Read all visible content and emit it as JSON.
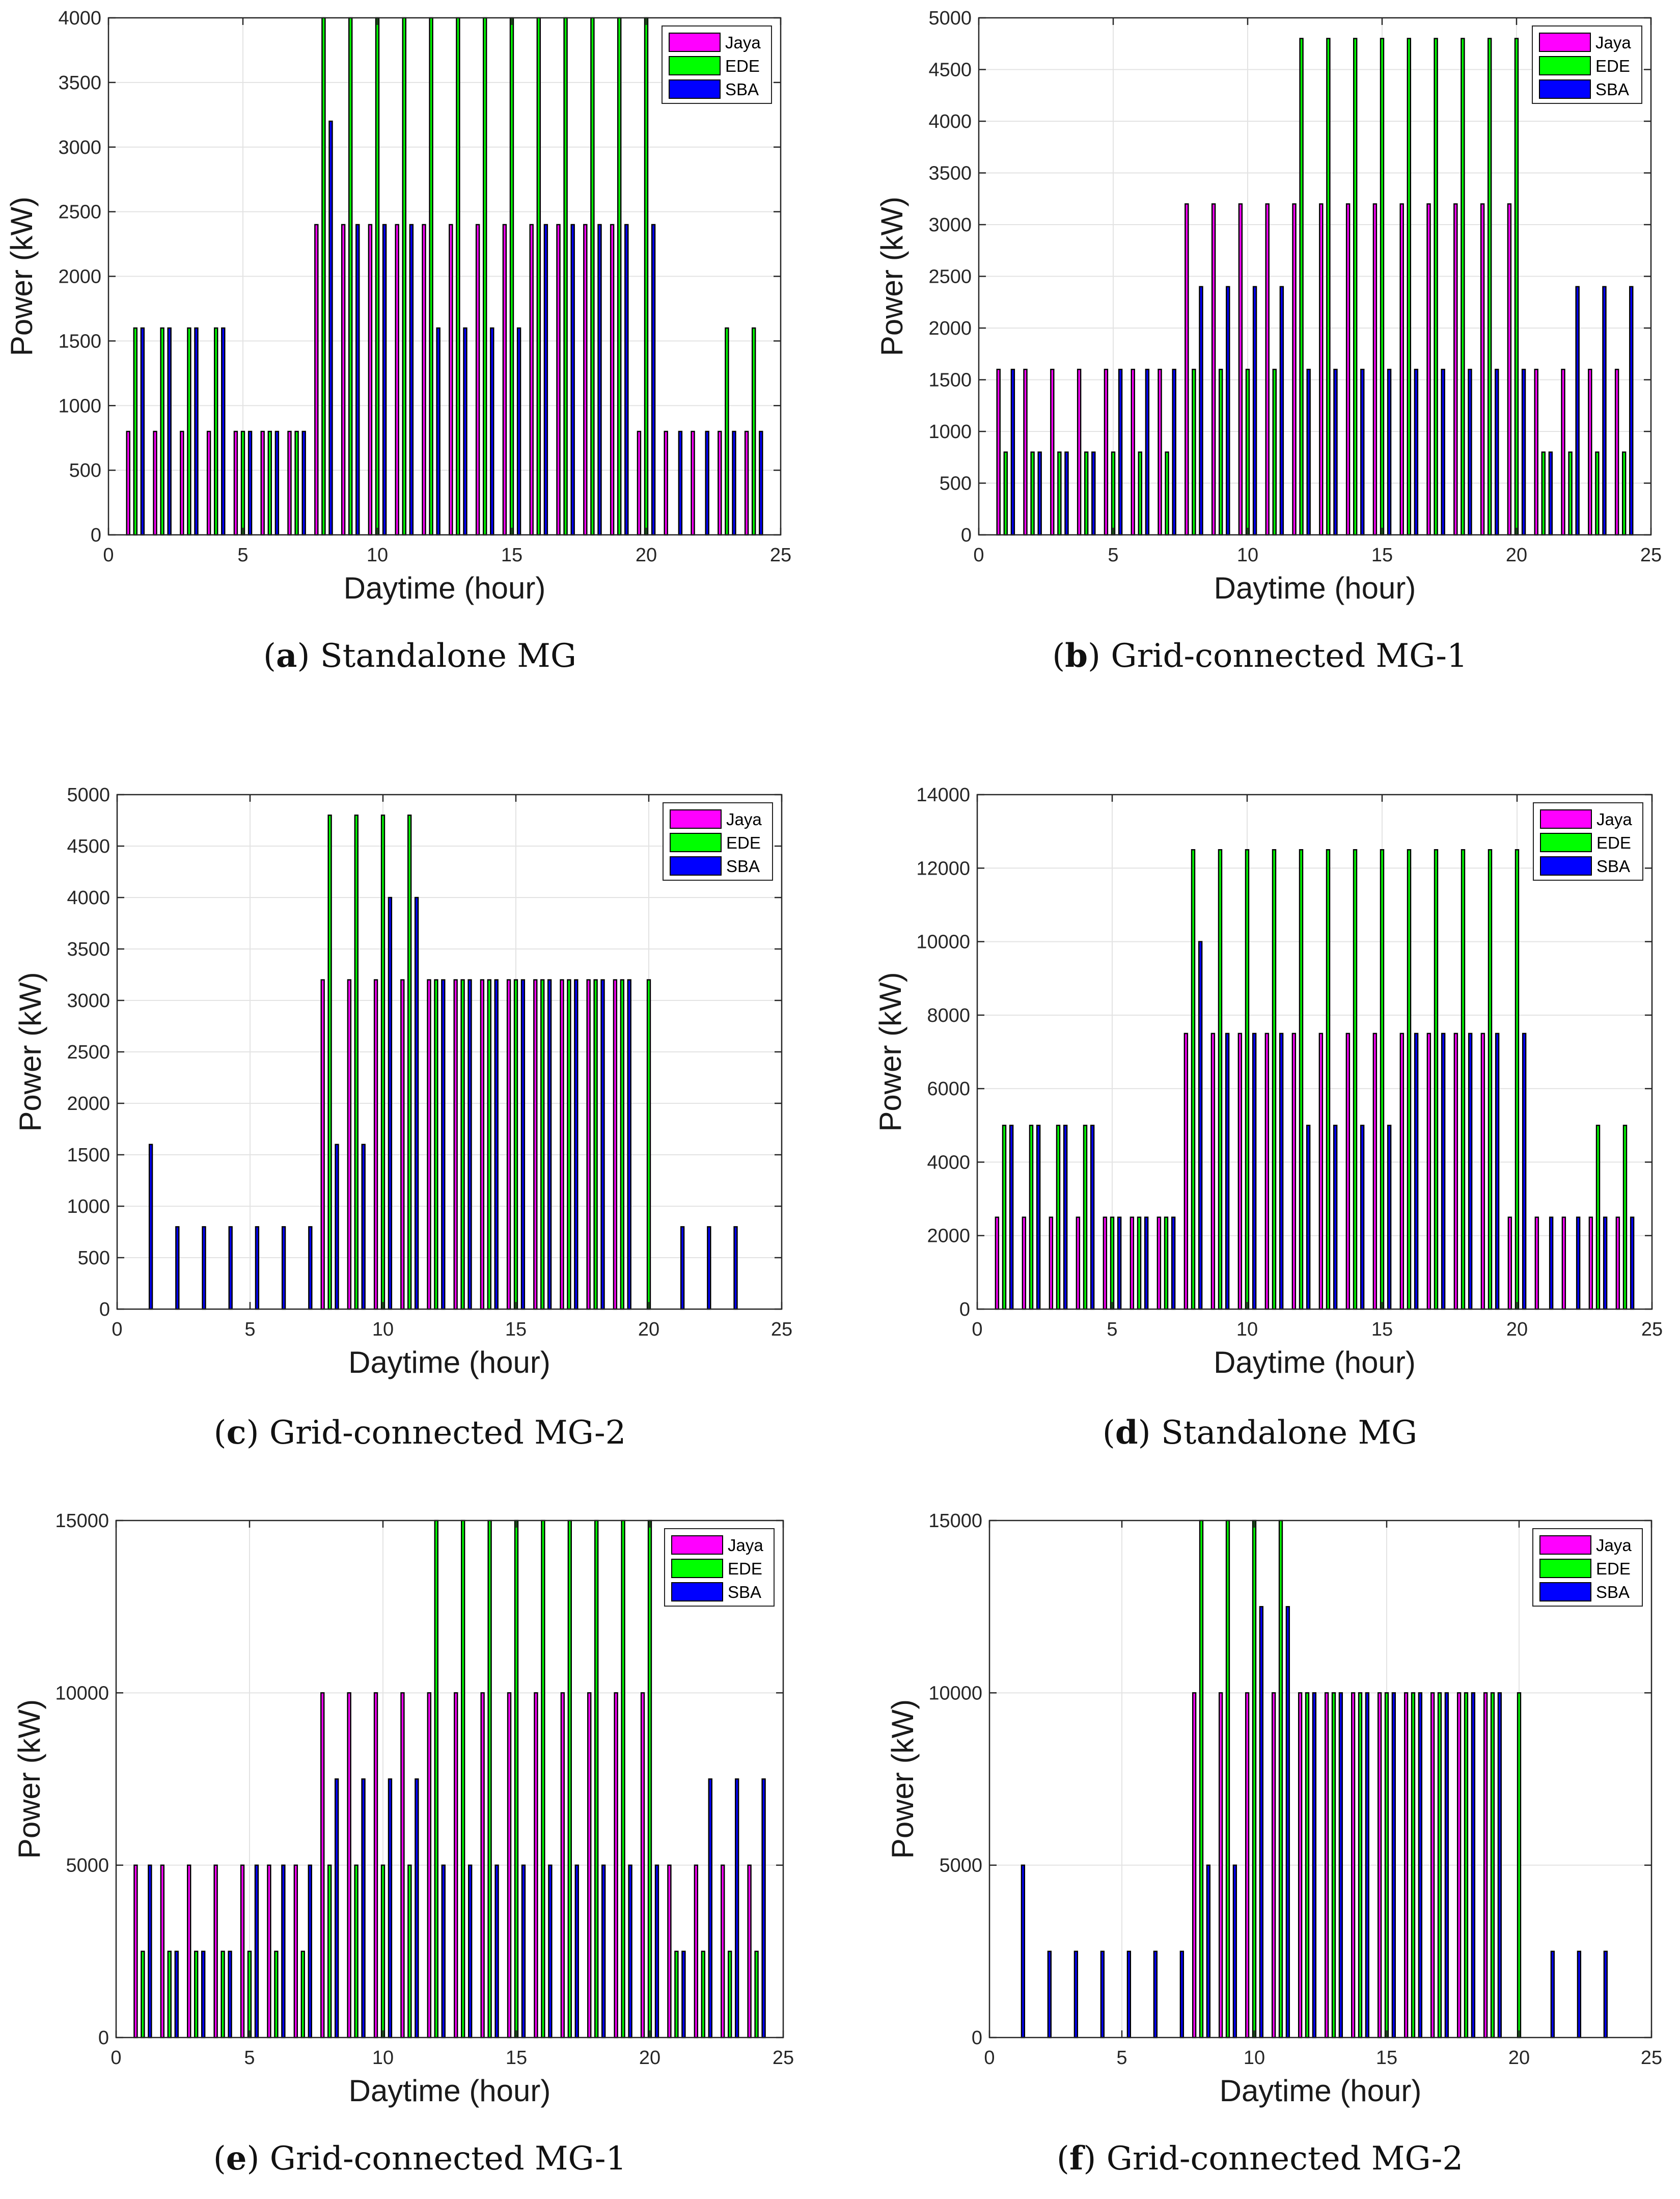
{
  "colors": {
    "jaya": "#FF00FF",
    "ede": "#00FF00",
    "sba": "#0000FF",
    "grid": "#e3e3e3",
    "axis": "#262626"
  },
  "chart_data": [
    {
      "type": "bar",
      "caption_letter": "a",
      "caption_text": "Standalone MG",
      "xlabel": "Daytime (hour)",
      "ylabel": "Power (kW)",
      "xlim": [
        0,
        25
      ],
      "ylim": [
        0,
        4000
      ],
      "xticks": [
        0,
        5,
        10,
        15,
        20,
        25
      ],
      "yticks": [
        0,
        500,
        1000,
        1500,
        2000,
        2500,
        3000,
        3500,
        4000
      ],
      "ytick_labels": [
        "0",
        "500",
        "1000",
        "1500",
        "2000",
        "2500",
        "3000",
        "3500",
        "4000"
      ],
      "grid": true,
      "legend_position": "top-right",
      "categories": [
        1,
        2,
        3,
        4,
        5,
        6,
        7,
        8,
        9,
        10,
        11,
        12,
        13,
        14,
        15,
        16,
        17,
        18,
        19,
        20,
        21,
        22,
        23,
        24
      ],
      "series": [
        {
          "name": "Jaya",
          "values": [
            800,
            800,
            800,
            800,
            800,
            800,
            800,
            2400,
            2400,
            2400,
            2400,
            2400,
            2400,
            2400,
            2400,
            2400,
            2400,
            2400,
            2400,
            800,
            800,
            800,
            800,
            800
          ]
        },
        {
          "name": "EDE",
          "values": [
            1600,
            1600,
            1600,
            1600,
            800,
            800,
            800,
            4000,
            4000,
            4000,
            4000,
            4000,
            4000,
            4000,
            4000,
            4000,
            4000,
            4000,
            4000,
            4000,
            0,
            0,
            1600,
            1600
          ]
        },
        {
          "name": "SBA",
          "values": [
            1600,
            1600,
            1600,
            1600,
            800,
            800,
            800,
            3200,
            2400,
            2400,
            2400,
            1600,
            1600,
            1600,
            1600,
            2400,
            2400,
            2400,
            2400,
            2400,
            800,
            800,
            800,
            800
          ]
        }
      ]
    },
    {
      "type": "bar",
      "caption_letter": "b",
      "caption_text": "Grid-connected MG-1",
      "xlabel": "Daytime (hour)",
      "ylabel": "Power (kW)",
      "xlim": [
        0,
        25
      ],
      "ylim": [
        0,
        5000
      ],
      "xticks": [
        0,
        5,
        10,
        15,
        20,
        25
      ],
      "yticks": [
        0,
        500,
        1000,
        1500,
        2000,
        2500,
        3000,
        3500,
        4000,
        4500,
        5000
      ],
      "ytick_labels": [
        "0",
        "500",
        "1000",
        "1500",
        "2000",
        "2500",
        "3000",
        "3500",
        "4000",
        "4500",
        "5000"
      ],
      "grid": true,
      "legend_position": "top-right",
      "categories": [
        1,
        2,
        3,
        4,
        5,
        6,
        7,
        8,
        9,
        10,
        11,
        12,
        13,
        14,
        15,
        16,
        17,
        18,
        19,
        20,
        21,
        22,
        23,
        24
      ],
      "series": [
        {
          "name": "Jaya",
          "values": [
            1600,
            1600,
            1600,
            1600,
            1600,
            1600,
            1600,
            3200,
            3200,
            3200,
            3200,
            3200,
            3200,
            3200,
            3200,
            3200,
            3200,
            3200,
            3200,
            3200,
            1600,
            1600,
            1600,
            1600
          ]
        },
        {
          "name": "EDE",
          "values": [
            800,
            800,
            800,
            800,
            800,
            800,
            800,
            1600,
            1600,
            1600,
            1600,
            4800,
            4800,
            4800,
            4800,
            4800,
            4800,
            4800,
            4800,
            4800,
            800,
            800,
            800,
            800
          ]
        },
        {
          "name": "SBA",
          "values": [
            1600,
            800,
            800,
            800,
            1600,
            1600,
            1600,
            2400,
            2400,
            2400,
            2400,
            1600,
            1600,
            1600,
            1600,
            1600,
            1600,
            1600,
            1600,
            1600,
            800,
            2400,
            2400,
            2400
          ]
        }
      ]
    },
    {
      "type": "bar",
      "caption_letter": "c",
      "caption_text": "Grid-connected MG-2",
      "xlabel": "Daytime (hour)",
      "ylabel": "Power (kW)",
      "xlim": [
        0,
        25
      ],
      "ylim": [
        0,
        5000
      ],
      "xticks": [
        0,
        5,
        10,
        15,
        20,
        25
      ],
      "yticks": [
        0,
        500,
        1000,
        1500,
        2000,
        2500,
        3000,
        3500,
        4000,
        4500,
        5000
      ],
      "ytick_labels": [
        "0",
        "500",
        "1000",
        "1500",
        "2000",
        "2500",
        "3000",
        "3500",
        "4000",
        "4500",
        "5000"
      ],
      "grid": true,
      "legend_position": "top-right",
      "categories": [
        1,
        2,
        3,
        4,
        5,
        6,
        7,
        8,
        9,
        10,
        11,
        12,
        13,
        14,
        15,
        16,
        17,
        18,
        19,
        20,
        21,
        22,
        23,
        24
      ],
      "series": [
        {
          "name": "Jaya",
          "values": [
            0,
            0,
            0,
            0,
            0,
            0,
            0,
            3200,
            3200,
            3200,
            3200,
            3200,
            3200,
            3200,
            3200,
            3200,
            3200,
            3200,
            3200,
            0,
            0,
            0,
            0,
            0
          ]
        },
        {
          "name": "EDE",
          "values": [
            0,
            0,
            0,
            0,
            0,
            0,
            0,
            4800,
            4800,
            4800,
            4800,
            3200,
            3200,
            3200,
            3200,
            3200,
            3200,
            3200,
            3200,
            3200,
            0,
            0,
            0,
            0
          ]
        },
        {
          "name": "SBA",
          "values": [
            1600,
            800,
            800,
            800,
            800,
            800,
            800,
            1600,
            1600,
            4000,
            4000,
            3200,
            3200,
            3200,
            3200,
            3200,
            3200,
            3200,
            3200,
            0,
            800,
            800,
            800,
            0
          ]
        }
      ]
    },
    {
      "type": "bar",
      "caption_letter": "d",
      "caption_text": "Standalone MG",
      "xlabel": "Daytime (hour)",
      "ylabel": "Power (kW)",
      "xlim": [
        0,
        25
      ],
      "ylim": [
        0,
        14000
      ],
      "xticks": [
        0,
        5,
        10,
        15,
        20,
        25
      ],
      "yticks": [
        0,
        2000,
        4000,
        6000,
        8000,
        10000,
        12000,
        14000
      ],
      "ytick_labels": [
        "0",
        "2000",
        "4000",
        "6000",
        "8000",
        "10000",
        "12000",
        "14000"
      ],
      "grid": true,
      "legend_position": "top-right",
      "categories": [
        1,
        2,
        3,
        4,
        5,
        6,
        7,
        8,
        9,
        10,
        11,
        12,
        13,
        14,
        15,
        16,
        17,
        18,
        19,
        20,
        21,
        22,
        23,
        24
      ],
      "series": [
        {
          "name": "Jaya",
          "values": [
            2500,
            2500,
            2500,
            2500,
            2500,
            2500,
            2500,
            7500,
            7500,
            7500,
            7500,
            7500,
            7500,
            7500,
            7500,
            7500,
            7500,
            7500,
            7500,
            2500,
            2500,
            2500,
            2500,
            2500
          ]
        },
        {
          "name": "EDE",
          "values": [
            5000,
            5000,
            5000,
            5000,
            2500,
            2500,
            2500,
            12500,
            12500,
            12500,
            12500,
            12500,
            12500,
            12500,
            12500,
            12500,
            12500,
            12500,
            12500,
            12500,
            0,
            0,
            5000,
            5000
          ]
        },
        {
          "name": "SBA",
          "values": [
            5000,
            5000,
            5000,
            5000,
            2500,
            2500,
            2500,
            10000,
            7500,
            7500,
            7500,
            5000,
            5000,
            5000,
            5000,
            7500,
            7500,
            7500,
            7500,
            7500,
            2500,
            2500,
            2500,
            2500
          ]
        }
      ]
    },
    {
      "type": "bar",
      "caption_letter": "e",
      "caption_text": "Grid-connected MG-1",
      "xlabel": "Daytime (hour)",
      "ylabel": "Power (kW)",
      "xlim": [
        0,
        25
      ],
      "ylim": [
        0,
        15000
      ],
      "xticks": [
        0,
        5,
        10,
        15,
        20,
        25
      ],
      "yticks": [
        0,
        5000,
        10000,
        15000
      ],
      "ytick_labels": [
        "0",
        "5000",
        "10000",
        "15000"
      ],
      "grid": true,
      "legend_position": "top-right",
      "categories": [
        1,
        2,
        3,
        4,
        5,
        6,
        7,
        8,
        9,
        10,
        11,
        12,
        13,
        14,
        15,
        16,
        17,
        18,
        19,
        20,
        21,
        22,
        23,
        24
      ],
      "series": [
        {
          "name": "Jaya",
          "values": [
            5000,
            5000,
            5000,
            5000,
            5000,
            5000,
            5000,
            10000,
            10000,
            10000,
            10000,
            10000,
            10000,
            10000,
            10000,
            10000,
            10000,
            10000,
            10000,
            10000,
            5000,
            5000,
            5000,
            5000
          ]
        },
        {
          "name": "EDE",
          "values": [
            2500,
            2500,
            2500,
            2500,
            2500,
            2500,
            2500,
            5000,
            5000,
            5000,
            5000,
            15000,
            15000,
            15000,
            15000,
            15000,
            15000,
            15000,
            15000,
            15000,
            2500,
            2500,
            2500,
            2500
          ]
        },
        {
          "name": "SBA",
          "values": [
            5000,
            2500,
            2500,
            2500,
            5000,
            5000,
            5000,
            7500,
            7500,
            7500,
            7500,
            5000,
            5000,
            5000,
            5000,
            5000,
            5000,
            5000,
            5000,
            5000,
            2500,
            7500,
            7500,
            7500
          ]
        }
      ]
    },
    {
      "type": "bar",
      "caption_letter": "f",
      "caption_text": "Grid-connected MG-2",
      "xlabel": "Daytime (hour)",
      "ylabel": "Power (kW)",
      "xlim": [
        0,
        25
      ],
      "ylim": [
        0,
        15000
      ],
      "xticks": [
        0,
        5,
        10,
        15,
        20,
        25
      ],
      "yticks": [
        0,
        5000,
        10000,
        15000
      ],
      "ytick_labels": [
        "0",
        "5000",
        "10000",
        "15000"
      ],
      "grid": true,
      "legend_position": "top-right",
      "categories": [
        1,
        2,
        3,
        4,
        5,
        6,
        7,
        8,
        9,
        10,
        11,
        12,
        13,
        14,
        15,
        16,
        17,
        18,
        19,
        20,
        21,
        22,
        23,
        24
      ],
      "series": [
        {
          "name": "Jaya",
          "values": [
            0,
            0,
            0,
            0,
            0,
            0,
            0,
            10000,
            10000,
            10000,
            10000,
            10000,
            10000,
            10000,
            10000,
            10000,
            10000,
            10000,
            10000,
            0,
            0,
            0,
            0,
            0
          ]
        },
        {
          "name": "EDE",
          "values": [
            0,
            0,
            0,
            0,
            0,
            0,
            0,
            15000,
            15000,
            15000,
            15000,
            10000,
            10000,
            10000,
            10000,
            10000,
            10000,
            10000,
            10000,
            10000,
            0,
            0,
            0,
            0
          ]
        },
        {
          "name": "SBA",
          "values": [
            5000,
            2500,
            2500,
            2500,
            2500,
            2500,
            2500,
            5000,
            5000,
            12500,
            12500,
            10000,
            10000,
            10000,
            10000,
            10000,
            10000,
            10000,
            10000,
            0,
            2500,
            2500,
            2500,
            0
          ]
        }
      ]
    }
  ]
}
